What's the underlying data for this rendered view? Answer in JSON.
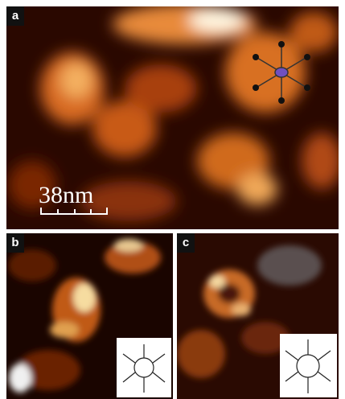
{
  "panels": [
    {
      "label": "a",
      "scale_bar": "38nm"
    },
    {
      "label": "b"
    },
    {
      "label": "c"
    }
  ]
}
